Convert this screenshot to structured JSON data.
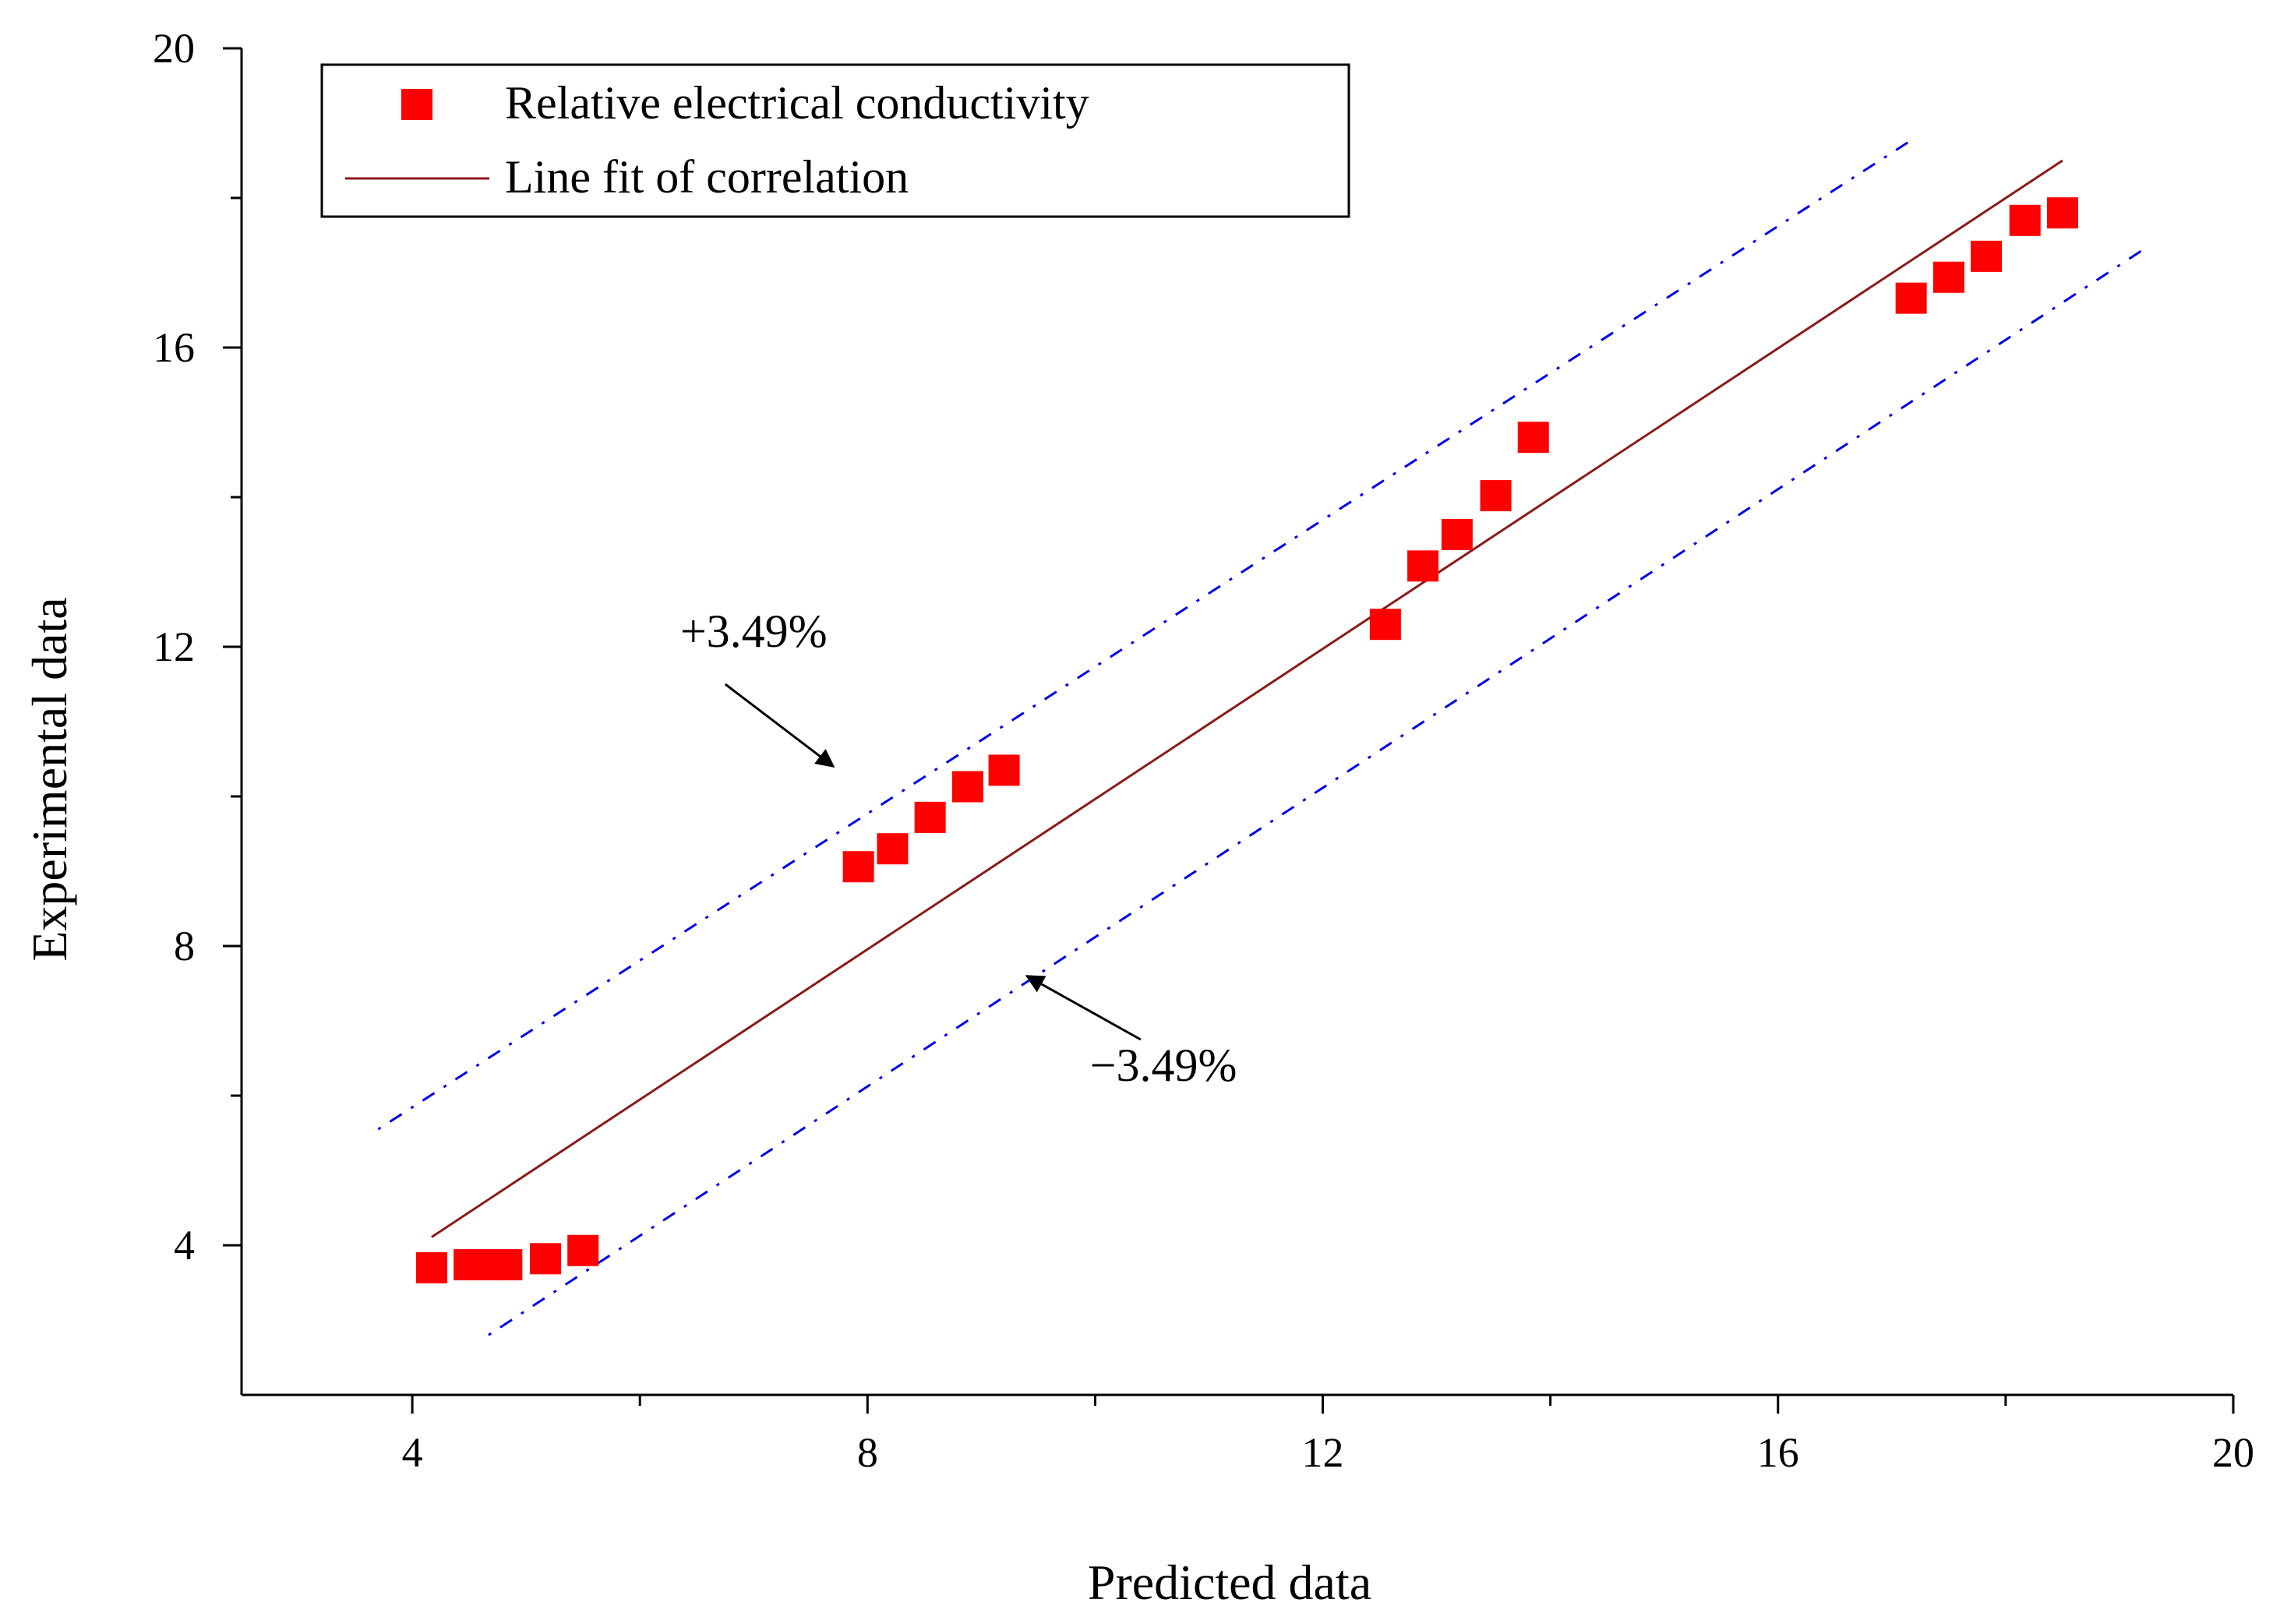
{
  "chart_data": {
    "type": "scatter",
    "title": "",
    "xlabel": "Predicted data",
    "ylabel": "Experimental data",
    "xlim": [
      2.5,
      20
    ],
    "ylim": [
      2,
      20
    ],
    "xticks": [
      4,
      8,
      12,
      16,
      20
    ],
    "yticks": [
      4,
      8,
      12,
      16,
      20
    ],
    "x_minor_ticks": [
      6,
      10,
      14,
      18
    ],
    "y_minor_ticks": [
      6,
      10,
      14,
      18
    ],
    "series": [
      {
        "name": "Relative electrical conductivity",
        "kind": "scatter",
        "marker": "square",
        "color": "#ff0000",
        "x": [
          4.17,
          4.5,
          4.67,
          4.83,
          5.17,
          5.5,
          7.92,
          8.22,
          8.55,
          8.88,
          9.2,
          12.55,
          12.88,
          13.18,
          13.52,
          13.85,
          17.17,
          17.5,
          17.83,
          18.17,
          18.5
        ],
        "y": [
          3.7,
          3.74,
          3.74,
          3.74,
          3.82,
          3.93,
          9.06,
          9.3,
          9.72,
          10.13,
          10.35,
          12.3,
          13.08,
          13.5,
          14.02,
          14.8,
          16.66,
          16.94,
          17.22,
          17.7,
          17.8
        ]
      },
      {
        "name": "Line fit of correlation",
        "kind": "line",
        "color": "#8b1a1a",
        "x": [
          4.17,
          18.5
        ],
        "y": [
          4.11,
          18.5
        ]
      },
      {
        "name": "+3.49%",
        "kind": "line",
        "style": "dash-dot",
        "color": "#0000ee",
        "x": [
          3.7,
          17.2
        ],
        "y": [
          5.55,
          18.8
        ]
      },
      {
        "name": "-3.49%",
        "kind": "line",
        "style": "dash-dot",
        "color": "#0000ee",
        "x": [
          4.67,
          19.2
        ],
        "y": [
          2.8,
          17.3
        ]
      }
    ],
    "legend": {
      "position": "top-left",
      "entries": [
        "Relative electrical conductivity",
        "Line fit of correlation"
      ]
    },
    "annotations": [
      {
        "text": "+3.49%",
        "text_x": 7.0,
        "text_y": 12.0,
        "arrow_from": [
          6.75,
          11.5
        ],
        "arrow_to": [
          7.7,
          10.4
        ]
      },
      {
        "text": "−3.49%",
        "text_x": 10.6,
        "text_y": 6.2,
        "arrow_from": [
          10.4,
          6.75
        ],
        "arrow_to": [
          9.4,
          7.6
        ]
      }
    ]
  }
}
